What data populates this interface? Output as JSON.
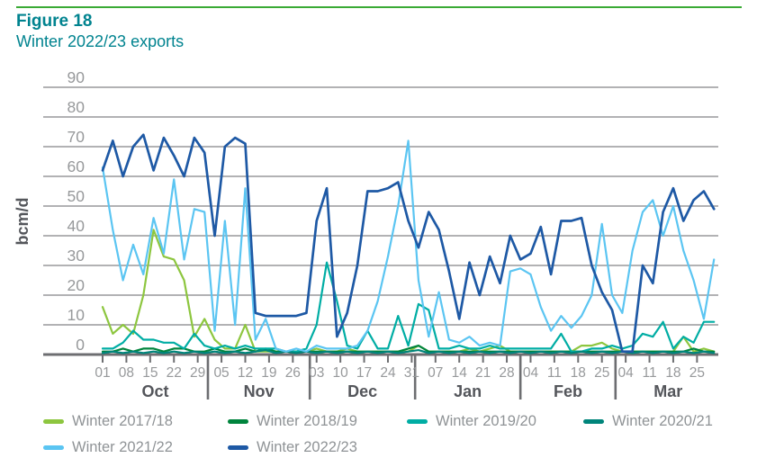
{
  "header": {
    "figure_label": "Figure 18",
    "title": "Winter 2022/23 exports"
  },
  "colors": {
    "top_rule_green": "#3aaa35",
    "title_teal": "#00838f"
  },
  "chart_data": {
    "type": "line",
    "title": "Winter 2022/23 exports",
    "ylabel": "bcm/d",
    "ylim": [
      0,
      90
    ],
    "grid": "horizontal",
    "legend_position": "bottom",
    "y_ticks": [
      90,
      80,
      70,
      60,
      50,
      40,
      30,
      20,
      10,
      0
    ],
    "style": {
      "gridline": "#98999b",
      "axis_line": "#6d6e71",
      "tick_text": "#97999b",
      "strong_text": "#54565b"
    },
    "x_axis": {
      "unit": "days since 1 Oct",
      "week_ticks": [
        {
          "day": 0,
          "label": "01"
        },
        {
          "day": 7,
          "label": "08"
        },
        {
          "day": 14,
          "label": "15"
        },
        {
          "day": 21,
          "label": "22"
        },
        {
          "day": 28,
          "label": "29"
        },
        {
          "day": 35,
          "label": "05"
        },
        {
          "day": 42,
          "label": "12"
        },
        {
          "day": 49,
          "label": "19"
        },
        {
          "day": 56,
          "label": "26"
        },
        {
          "day": 63,
          "label": "03"
        },
        {
          "day": 70,
          "label": "10"
        },
        {
          "day": 77,
          "label": "17"
        },
        {
          "day": 84,
          "label": "24"
        },
        {
          "day": 91,
          "label": "31"
        },
        {
          "day": 98,
          "label": "07"
        },
        {
          "day": 105,
          "label": "14"
        },
        {
          "day": 112,
          "label": "21"
        },
        {
          "day": 119,
          "label": "28"
        },
        {
          "day": 126,
          "label": "04"
        },
        {
          "day": 133,
          "label": "11"
        },
        {
          "day": 140,
          "label": "18"
        },
        {
          "day": 147,
          "label": "25"
        },
        {
          "day": 154,
          "label": "04"
        },
        {
          "day": 161,
          "label": "11"
        },
        {
          "day": 168,
          "label": "18"
        },
        {
          "day": 175,
          "label": "25"
        }
      ],
      "months": [
        {
          "label": "Oct",
          "start_day": 0,
          "end_day": 31
        },
        {
          "label": "Nov",
          "start_day": 31,
          "end_day": 61
        },
        {
          "label": "Dec",
          "start_day": 61,
          "end_day": 92
        },
        {
          "label": "Jan",
          "start_day": 92,
          "end_day": 123
        },
        {
          "label": "Feb",
          "start_day": 123,
          "end_day": 151
        },
        {
          "label": "Mar",
          "start_day": 151,
          "end_day": 182
        }
      ]
    },
    "x_day_offsets": [
      0,
      3,
      6,
      9,
      12,
      15,
      18,
      21,
      24,
      27,
      30,
      33,
      36,
      39,
      42,
      45,
      48,
      51,
      54,
      57,
      60,
      63,
      66,
      69,
      72,
      75,
      78,
      81,
      84,
      87,
      90,
      93,
      96,
      99,
      102,
      105,
      108,
      111,
      114,
      117,
      120,
      123,
      126,
      129,
      132,
      135,
      138,
      141,
      144,
      147,
      150,
      153,
      156,
      159,
      162,
      165,
      168,
      171,
      174,
      177,
      180
    ],
    "series": [
      {
        "name": "Winter 2017/18",
        "color": "#8dc63f",
        "values": [
          16,
          7,
          10,
          7,
          20,
          42,
          33,
          32,
          25,
          6,
          12,
          5,
          2,
          2,
          10,
          1,
          1,
          1,
          1,
          1,
          1,
          2,
          1,
          1,
          2,
          1,
          1,
          1,
          1,
          1,
          1,
          3,
          1,
          1,
          1,
          1,
          2,
          1,
          2,
          3,
          1,
          1,
          1,
          1,
          1,
          1,
          1,
          3,
          3,
          4,
          2,
          1,
          1,
          1,
          1,
          1,
          1,
          6,
          1,
          2,
          1
        ]
      },
      {
        "name": "Winter 2018/19",
        "color": "#00843d",
        "values": [
          1,
          1,
          2,
          1,
          2,
          2,
          1,
          2,
          2,
          1,
          1,
          2,
          1,
          1,
          2,
          1,
          2,
          1,
          1,
          1,
          1,
          1,
          1,
          1,
          1,
          1,
          1,
          1,
          1,
          1,
          2,
          3,
          1,
          1,
          1,
          1,
          1,
          1,
          1,
          1,
          1,
          1,
          1,
          1,
          1,
          1,
          1,
          1,
          1,
          1,
          1,
          1,
          1,
          1,
          1,
          1,
          1,
          1,
          2,
          1,
          1
        ]
      },
      {
        "name": "Winter 2019/20",
        "color": "#00ada4",
        "values": [
          2,
          2,
          4,
          8,
          5,
          5,
          4,
          4,
          2,
          7,
          3,
          2,
          3,
          2,
          3,
          2,
          2,
          2,
          1,
          1,
          2,
          10,
          31,
          18,
          3,
          2,
          8,
          2,
          2,
          13,
          3,
          17,
          15,
          2,
          2,
          3,
          2,
          2,
          3,
          2,
          2,
          2,
          2,
          2,
          2,
          7,
          1,
          1,
          2,
          2,
          3,
          2,
          3,
          7,
          6,
          11,
          2,
          6,
          4,
          11,
          11
        ]
      },
      {
        "name": "Winter 2020/21",
        "color": "#00857b",
        "values": [
          0.5,
          1,
          0.5,
          1,
          0.5,
          1,
          0.5,
          1,
          0.5,
          1,
          0.5,
          1,
          0.5,
          1,
          0.5,
          1,
          1.5,
          0.5,
          1,
          0.5,
          1,
          0.5,
          1,
          0.5,
          1,
          0.5,
          1,
          0.5,
          1,
          0.5,
          1,
          1.5,
          0.5,
          1,
          0.5,
          1,
          0.5,
          1,
          0.5,
          1,
          0.5,
          1,
          0.5,
          1,
          0.5,
          1,
          0.5,
          1,
          0.5,
          1,
          0.5,
          1,
          0.5,
          1,
          0.5,
          1,
          0.5,
          1,
          0.5,
          1,
          0.5
        ]
      },
      {
        "name": "Winter 2021/22",
        "color": "#5bc5f2",
        "values": [
          63,
          42,
          25,
          37,
          27,
          46,
          34,
          59,
          32,
          49,
          48,
          8,
          45,
          10,
          56,
          5,
          12,
          2,
          1,
          2,
          1,
          3,
          2,
          2,
          2,
          3,
          8,
          18,
          33,
          50,
          72,
          25,
          6,
          21,
          5,
          4,
          6,
          3,
          4,
          3,
          28,
          29,
          27,
          16,
          8,
          13,
          9,
          13,
          20,
          44,
          20,
          14,
          35,
          48,
          52,
          40,
          50,
          35,
          25,
          12,
          32
        ]
      },
      {
        "name": "Winter 2022/23",
        "color": "#1e59a5",
        "values": [
          62,
          72,
          60,
          70,
          74,
          62,
          73,
          67,
          60,
          73,
          68,
          40,
          70,
          73,
          71,
          14,
          13,
          13,
          13,
          13,
          14,
          45,
          56,
          6,
          14,
          30,
          55,
          55,
          56,
          58,
          45,
          36,
          48,
          42,
          28,
          12,
          31,
          20,
          33,
          24,
          40,
          32,
          34,
          43,
          27,
          45,
          45,
          46,
          30,
          21,
          15,
          1,
          1,
          30,
          24,
          48,
          56,
          45,
          52,
          55,
          49
        ]
      }
    ]
  }
}
